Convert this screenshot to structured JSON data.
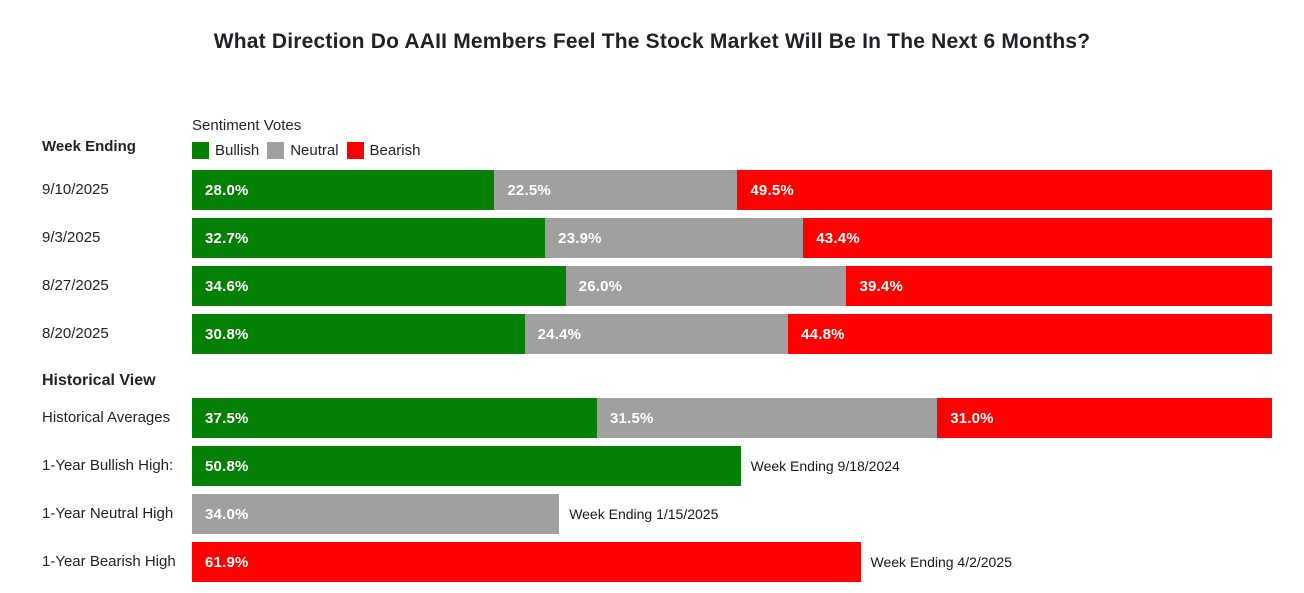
{
  "title": "What Direction Do AAII Members Feel The Stock Market Will Be In The Next 6 Months?",
  "left_column_header": "Week Ending",
  "section_header": "Historical View",
  "legend": {
    "title": "Sentiment Votes",
    "items": [
      {
        "label": "Bullish",
        "series": "bullish",
        "color": "#038003"
      },
      {
        "label": "Neutral",
        "series": "neutral",
        "color": "#a0a0a0"
      },
      {
        "label": "Bearish",
        "series": "bearish",
        "color": "#fe0000"
      }
    ]
  },
  "colors": {
    "bullish": "#038003",
    "neutral": "#a0a0a0",
    "bearish": "#fe0000",
    "bar_value_text": "#ffffff",
    "heading_text": "#1e2126"
  },
  "chart_data": {
    "type": "bar",
    "orientation": "horizontal",
    "stacked": true,
    "value_unit": "percent",
    "axis_range": [
      0,
      100
    ],
    "grid": false,
    "legend_position": "top",
    "series_names": [
      "Bullish",
      "Neutral",
      "Bearish"
    ],
    "weekly_rows": [
      {
        "label": "9/10/2025",
        "bullish": 28.0,
        "neutral": 22.5,
        "bearish": 49.5
      },
      {
        "label": "9/3/2025",
        "bullish": 32.7,
        "neutral": 23.9,
        "bearish": 43.4
      },
      {
        "label": "8/27/2025",
        "bullish": 34.6,
        "neutral": 26.0,
        "bearish": 39.4
      },
      {
        "label": "8/20/2025",
        "bullish": 30.8,
        "neutral": 24.4,
        "bearish": 44.8
      }
    ],
    "historical_rows": [
      {
        "label": "Historical Averages",
        "kind": "stacked",
        "bullish": 37.5,
        "neutral": 31.5,
        "bearish": 31.0
      },
      {
        "label": "1-Year Bullish High:",
        "kind": "single",
        "series": "bullish",
        "value": 50.8,
        "annotation": "Week Ending 9/18/2024"
      },
      {
        "label": "1-Year Neutral High",
        "kind": "single",
        "series": "neutral",
        "value": 34.0,
        "annotation": "Week Ending 1/15/2025"
      },
      {
        "label": "1-Year Bearish High",
        "kind": "single",
        "series": "bearish",
        "value": 61.9,
        "annotation": "Week Ending 4/2/2025"
      }
    ]
  }
}
